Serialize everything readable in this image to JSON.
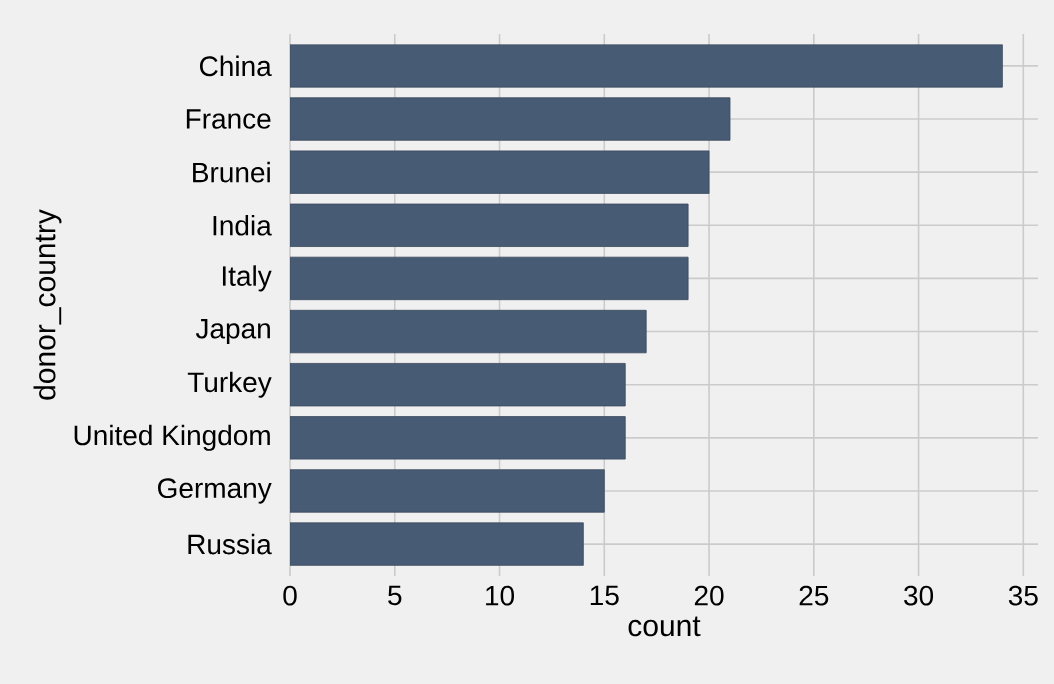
{
  "chart_data": {
    "type": "bar",
    "orientation": "horizontal",
    "xlabel": "count",
    "ylabel": "donor_country",
    "categories": [
      "China",
      "France",
      "Brunei",
      "India",
      "Italy",
      "Japan",
      "Turkey",
      "United Kingdom",
      "Germany",
      "Russia"
    ],
    "values": [
      34,
      21,
      20,
      19,
      19,
      17,
      16,
      16,
      15,
      14
    ],
    "color": "#485b74",
    "xlim": [
      0,
      35.7
    ],
    "xticks": [
      0,
      5,
      10,
      15,
      20,
      25,
      30,
      35
    ],
    "grid": true
  }
}
